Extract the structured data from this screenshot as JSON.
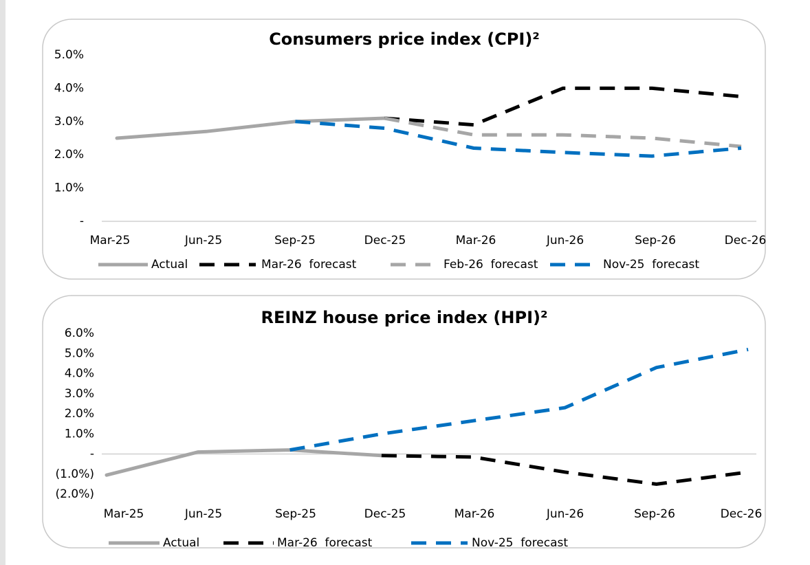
{
  "chart_data": [
    {
      "type": "line",
      "title": "Consumers price index (CPI)²",
      "categories": [
        "Mar-25",
        "Jun-25",
        "Sep-25",
        "Dec-25",
        "Mar-26",
        "Jun-26",
        "Sep-26",
        "Dec-26"
      ],
      "series": [
        {
          "name": "Actual",
          "color": "#a6a6a6",
          "style": "solid",
          "values": [
            2.5,
            2.7,
            3.0,
            3.1,
            null,
            null,
            null,
            null
          ]
        },
        {
          "name": "Mar-26  forecast",
          "color": "#000000",
          "style": "dashed",
          "values": [
            null,
            null,
            null,
            3.1,
            2.9,
            4.0,
            4.0,
            3.75
          ]
        },
        {
          "name": "Feb-26  forecast",
          "color": "#a6a6a6",
          "style": "dashed",
          "values": [
            null,
            null,
            null,
            3.1,
            2.6,
            2.6,
            2.5,
            2.25
          ]
        },
        {
          "name": "Nov-25  forecast",
          "color": "#0070c0",
          "style": "dashed",
          "values": [
            null,
            null,
            3.0,
            2.8,
            2.2,
            2.07,
            1.96,
            2.2
          ]
        }
      ],
      "ylim": [
        0,
        5
      ],
      "yticks": [
        {
          "value": 0,
          "label": "-"
        },
        {
          "value": 1,
          "label": "1.0%"
        },
        {
          "value": 2,
          "label": "2.0%"
        },
        {
          "value": 3,
          "label": "3.0%"
        },
        {
          "value": 4,
          "label": "4.0%"
        },
        {
          "value": 5,
          "label": "5.0%"
        }
      ],
      "grid": false,
      "legend": "bottom"
    },
    {
      "type": "line",
      "title": "REINZ house price index (HPI)²",
      "categories": [
        "Mar-25",
        "Jun-25",
        "Sep-25",
        "Dec-25",
        "Mar-26",
        "Jun-26",
        "Sep-26",
        "Dec-26"
      ],
      "series": [
        {
          "name": "Actual",
          "color": "#a6a6a6",
          "style": "solid",
          "values": [
            -1.05,
            0.1,
            0.2,
            -0.08,
            null,
            null,
            null,
            null
          ]
        },
        {
          "name": "Mar-26  forecast",
          "color": "#000000",
          "style": "dashed",
          "values": [
            null,
            null,
            null,
            -0.08,
            -0.15,
            -0.9,
            -1.5,
            -0.9
          ]
        },
        {
          "name": "Nov-25  forecast",
          "color": "#0070c0",
          "style": "dashed",
          "values": [
            null,
            null,
            0.2,
            1.0,
            1.65,
            2.3,
            4.3,
            5.2
          ]
        }
      ],
      "ylim": [
        -2,
        6
      ],
      "yticks": [
        {
          "value": -2,
          "label": "(2.0%)"
        },
        {
          "value": -1,
          "label": "(1.0%)"
        },
        {
          "value": 0,
          "label": "-"
        },
        {
          "value": 1,
          "label": "1.0%"
        },
        {
          "value": 2,
          "label": "2.0%"
        },
        {
          "value": 3,
          "label": "3.0%"
        },
        {
          "value": 4,
          "label": "4.0%"
        },
        {
          "value": 5,
          "label": "5.0%"
        },
        {
          "value": 6,
          "label": "6.0%"
        }
      ],
      "grid": false,
      "legend": "bottom"
    }
  ]
}
